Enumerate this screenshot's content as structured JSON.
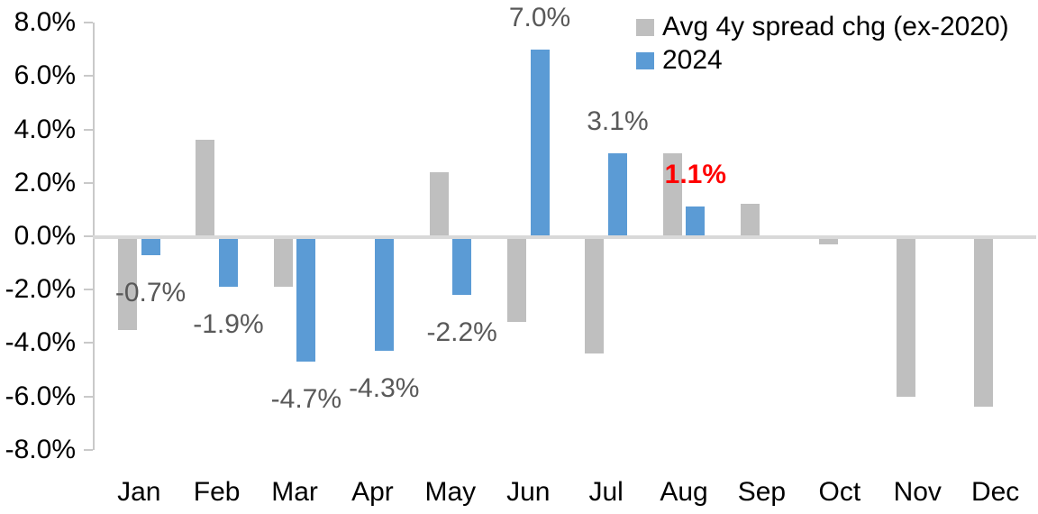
{
  "legend": {
    "position": "top-right",
    "items": [
      {
        "label": "Avg 4y spread chg (ex-2020)",
        "color": "#BFBFBF"
      },
      {
        "label": "2024",
        "color": "#5B9BD5"
      }
    ]
  },
  "chart_data": {
    "type": "bar",
    "title": "",
    "xlabel": "",
    "ylabel": "",
    "categories": [
      "Jan",
      "Feb",
      "Mar",
      "Apr",
      "May",
      "Jun",
      "Jul",
      "Aug",
      "Sep",
      "Oct",
      "Nov",
      "Dec"
    ],
    "series": [
      {
        "name": "Avg 4y spread chg (ex-2020)",
        "color": "#BFBFBF",
        "values": [
          -3.5,
          3.6,
          -1.9,
          0.0,
          2.4,
          -3.2,
          -4.4,
          3.1,
          1.2,
          -0.3,
          -6.0,
          -6.4
        ]
      },
      {
        "name": "2024",
        "color": "#5B9BD5",
        "values": [
          -0.7,
          -1.9,
          -4.7,
          -4.3,
          -2.2,
          7.0,
          3.1,
          1.1,
          null,
          null,
          null,
          null
        ],
        "data_labels": [
          {
            "text": "-0.7%",
            "color": "#595959",
            "bold": false
          },
          {
            "text": "-1.9%",
            "color": "#595959",
            "bold": false
          },
          {
            "text": "-4.7%",
            "color": "#595959",
            "bold": false
          },
          {
            "text": "-4.3%",
            "color": "#595959",
            "bold": false
          },
          {
            "text": "-2.2%",
            "color": "#595959",
            "bold": false
          },
          {
            "text": "7.0%",
            "color": "#595959",
            "bold": false
          },
          {
            "text": "3.1%",
            "color": "#595959",
            "bold": false
          },
          {
            "text": "1.1%",
            "color": "#FF0000",
            "bold": true
          },
          null,
          null,
          null,
          null
        ]
      }
    ],
    "y_axis": {
      "min": -8,
      "max": 8,
      "step": 2,
      "tick_labels": [
        "8.0%",
        "6.0%",
        "4.0%",
        "2.0%",
        "0.0%",
        "-2.0%",
        "-4.0%",
        "-6.0%",
        "-8.0%"
      ]
    },
    "ylim": [
      -8,
      8
    ],
    "grid": "zero-line-only",
    "legend_position": "top-right",
    "colors": {
      "zero_line": "#D9D9D9",
      "axis_line": "#C9C9C9",
      "axis_text": "#000000",
      "data_label_default": "#595959",
      "data_label_highlight": "#FF0000"
    }
  }
}
